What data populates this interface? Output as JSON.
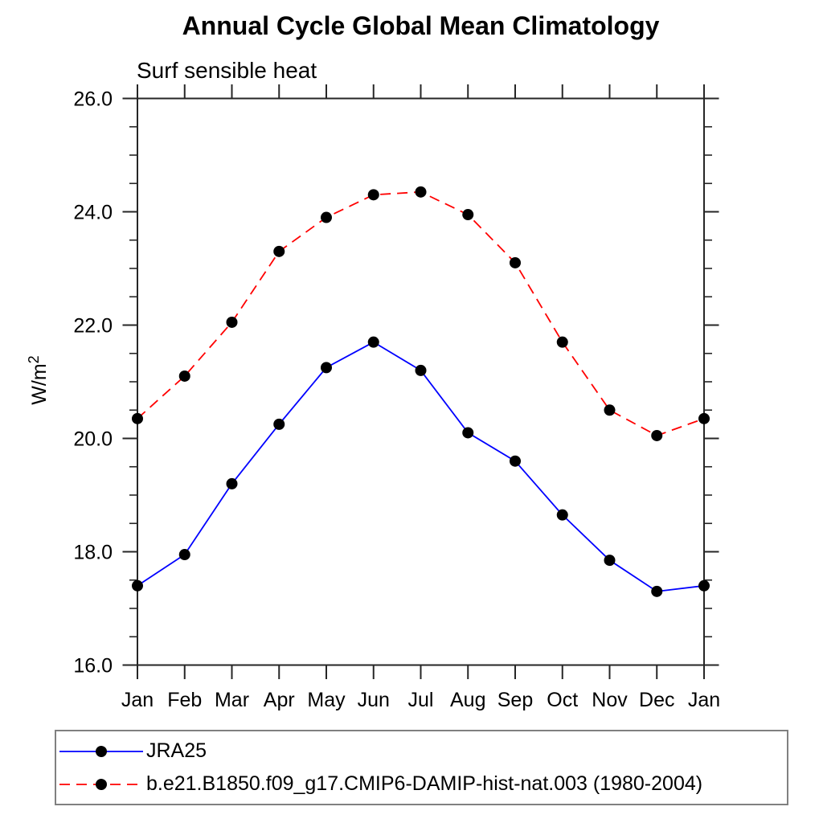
{
  "chart_data": {
    "type": "line",
    "title": "Annual Cycle Global Mean Climatology",
    "subtitle": "Surf sensible heat",
    "ylabel_base": "W/m",
    "ylabel_superscript": "2",
    "categories": [
      "Jan",
      "Feb",
      "Mar",
      "Apr",
      "May",
      "Jun",
      "Jul",
      "Aug",
      "Sep",
      "Oct",
      "Nov",
      "Dec",
      "Jan"
    ],
    "series": [
      {
        "name": "JRA25",
        "color": "#0000ff",
        "line_style": "solid",
        "marker": "filled-circle",
        "marker_color": "#000000",
        "values": [
          17.4,
          17.95,
          19.2,
          20.25,
          21.25,
          21.7,
          21.2,
          20.1,
          19.6,
          18.65,
          17.85,
          17.3,
          17.4
        ]
      },
      {
        "name": "b.e21.B1850.f09_g17.CMIP6-DAMIP-hist-nat.003 (1980-2004)",
        "color": "#ff0000",
        "line_style": "dashed",
        "marker": "filled-circle",
        "marker_color": "#000000",
        "values": [
          20.35,
          21.1,
          22.05,
          23.3,
          23.9,
          24.3,
          24.35,
          23.95,
          23.1,
          21.7,
          20.5,
          20.05,
          20.35
        ]
      }
    ],
    "ylim": [
      16.0,
      26.0
    ],
    "ytick_major_values": [
      16,
      18,
      20,
      22,
      24,
      26
    ],
    "ytick_major_labels": [
      "16.0",
      "18.0",
      "20.0",
      "22.0",
      "24.0",
      "26.0"
    ],
    "ytick_minor_step": 0.5,
    "grid": false,
    "legend_position": "bottom"
  }
}
